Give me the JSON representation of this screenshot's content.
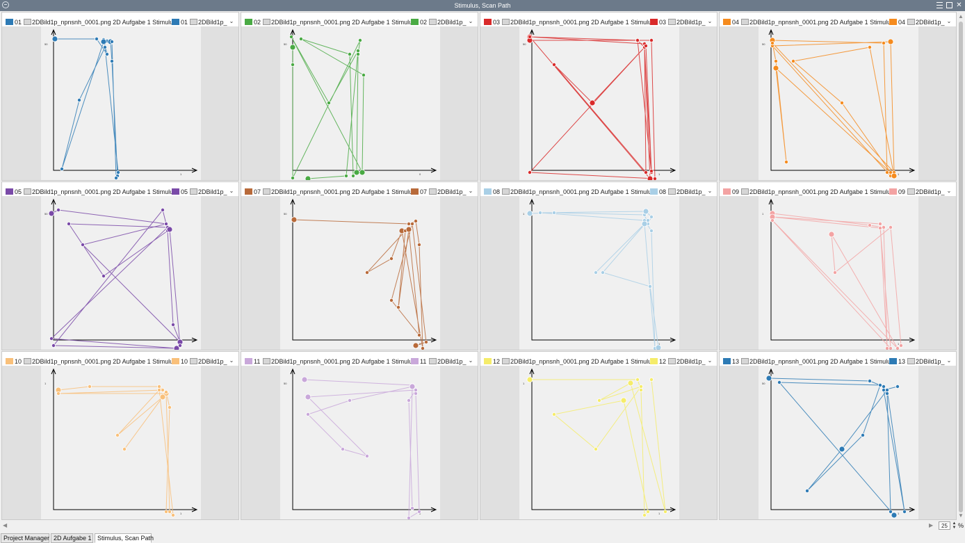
{
  "window": {
    "title": "Stimulus, Scan Path"
  },
  "colors": {
    "axis": "#000000",
    "plot_bg": "#f0f0f0",
    "gutter": "#e0e0e0",
    "titlebar": "#6c7a8a"
  },
  "icons": [
    "window-menu-icon",
    "menu-icon",
    "restore-icon",
    "close-icon",
    "chevron-down-icon",
    "arrow-up-icon",
    "arrow-down-icon",
    "arrow-left-icon",
    "arrow-right-icon"
  ],
  "stimulus_label": "2DBild1p_npnsnh_0001.png 2D Aufgabe 1 Stimulus",
  "short_label": "2DBild1p_",
  "panels": [
    {
      "id": "01",
      "color": "#2e7bb5",
      "axis_tick_y": "50",
      "axis_tick_x": "1",
      "path": [
        [
          10,
          8
        ],
        [
          70,
          8
        ],
        [
          85,
          30
        ],
        [
          80,
          9
        ],
        [
          85,
          11
        ],
        [
          90,
          12
        ],
        [
          92,
          40
        ],
        [
          100,
          205
        ],
        [
          98,
          208
        ],
        [
          92,
          12
        ],
        [
          80,
          12
        ],
        [
          20,
          195
        ],
        [
          45,
          96
        ],
        [
          82,
          20
        ],
        [
          101,
          200
        ]
      ]
    },
    {
      "id": "02",
      "color": "#4aaa44",
      "axis_tick_y": "50",
      "axis_tick_x": "0",
      "path": [
        [
          8,
          20
        ],
        [
          8,
          45
        ],
        [
          8,
          208
        ],
        [
          105,
          10
        ],
        [
          102,
          30
        ],
        [
          100,
          200
        ],
        [
          95,
          205
        ],
        [
          90,
          30
        ],
        [
          20,
          8
        ],
        [
          110,
          60
        ],
        [
          108,
          200
        ],
        [
          6,
          5
        ],
        [
          60,
          100
        ],
        [
          102,
          25
        ],
        [
          85,
          205
        ],
        [
          30,
          210
        ]
      ]
    },
    {
      "id": "03",
      "color": "#d92a2a",
      "axis_tick_y": "50",
      "axis_tick_x": "1",
      "path": [
        [
          5,
          5
        ],
        [
          160,
          10
        ],
        [
          170,
          20
        ],
        [
          180,
          200
        ],
        [
          160,
          10
        ],
        [
          5,
          10
        ],
        [
          180,
          10
        ],
        [
          185,
          210
        ],
        [
          5,
          200
        ],
        [
          170,
          20
        ],
        [
          178,
          210
        ],
        [
          5,
          5
        ],
        [
          170,
          15
        ],
        [
          172,
          200
        ],
        [
          40,
          45
        ],
        [
          95,
          100
        ],
        [
          172,
          18
        ],
        [
          180,
          198
        ]
      ]
    },
    {
      "id": "04",
      "color": "#f58b1e",
      "axis_tick_y": "50",
      "axis_tick_x": "1",
      "path": [
        [
          10,
          10
        ],
        [
          170,
          14
        ],
        [
          175,
          200
        ],
        [
          180,
          205
        ],
        [
          10,
          18
        ],
        [
          180,
          12
        ],
        [
          185,
          200
        ],
        [
          10,
          14
        ],
        [
          15,
          40
        ],
        [
          30,
          185
        ],
        [
          15,
          50
        ],
        [
          180,
          200
        ],
        [
          110,
          100
        ],
        [
          40,
          40
        ],
        [
          150,
          20
        ],
        [
          185,
          205
        ]
      ]
    },
    {
      "id": "05",
      "color": "#7a4aa8",
      "axis_tick_y": "50",
      "axis_tick_x": "1",
      "path": [
        [
          5,
          15
        ],
        [
          15,
          10
        ],
        [
          170,
          30
        ],
        [
          172,
          40
        ],
        [
          180,
          175
        ],
        [
          190,
          200
        ],
        [
          50,
          60
        ],
        [
          170,
          30
        ],
        [
          165,
          10
        ],
        [
          8,
          205
        ],
        [
          185,
          210
        ],
        [
          5,
          195
        ],
        [
          172,
          35
        ],
        [
          30,
          30
        ],
        [
          80,
          105
        ],
        [
          175,
          38
        ],
        [
          190,
          205
        ]
      ]
    },
    {
      "id": "07",
      "color": "#b86a3a",
      "axis_tick_y": "50",
      "axis_tick_x": "0",
      "path": [
        [
          10,
          24
        ],
        [
          175,
          30
        ],
        [
          185,
          26
        ],
        [
          190,
          60
        ],
        [
          195,
          210
        ],
        [
          165,
          40
        ],
        [
          150,
          80
        ],
        [
          115,
          100
        ],
        [
          170,
          40
        ],
        [
          160,
          150
        ],
        [
          175,
          38
        ],
        [
          190,
          190
        ],
        [
          150,
          140
        ],
        [
          180,
          30
        ],
        [
          200,
          200
        ],
        [
          185,
          205
        ]
      ]
    },
    {
      "id": "08",
      "color": "#a9cfe6",
      "axis_tick_y": "1",
      "axis_tick_x": "1",
      "path": [
        [
          5,
          15
        ],
        [
          40,
          14
        ],
        [
          170,
          17
        ],
        [
          175,
          30
        ],
        [
          180,
          20
        ],
        [
          172,
          12
        ],
        [
          20,
          14
        ],
        [
          170,
          25
        ],
        [
          180,
          40
        ],
        [
          185,
          210
        ],
        [
          170,
          30
        ],
        [
          100,
          100
        ],
        [
          175,
          25
        ],
        [
          110,
          100
        ],
        [
          178,
          120
        ],
        [
          190,
          208
        ]
      ]
    },
    {
      "id": "09",
      "color": "#f3a3a3",
      "axis_tick_y": "1",
      "axis_tick_x": "1",
      "path": [
        [
          10,
          15
        ],
        [
          150,
          32
        ],
        [
          170,
          35
        ],
        [
          175,
          210
        ],
        [
          165,
          30
        ],
        [
          10,
          20
        ],
        [
          165,
          36
        ],
        [
          180,
          210
        ],
        [
          10,
          25
        ],
        [
          190,
          210
        ],
        [
          95,
          45
        ],
        [
          100,
          100
        ],
        [
          180,
          35
        ],
        [
          195,
          205
        ]
      ]
    },
    {
      "id": "10",
      "color": "#f9c07a",
      "axis_tick_y": "1",
      "axis_tick_x": "1",
      "path": [
        [
          15,
          25
        ],
        [
          60,
          20
        ],
        [
          160,
          20
        ],
        [
          165,
          25
        ],
        [
          15,
          30
        ],
        [
          170,
          30
        ],
        [
          175,
          200
        ],
        [
          180,
          205
        ],
        [
          160,
          25
        ],
        [
          100,
          90
        ],
        [
          165,
          35
        ],
        [
          110,
          110
        ],
        [
          170,
          28
        ],
        [
          175,
          50
        ],
        [
          170,
          200
        ]
      ]
    },
    {
      "id": "11",
      "color": "#c9a8da",
      "axis_tick_y": "50",
      "axis_tick_x": "0",
      "path": [
        [
          25,
          10
        ],
        [
          180,
          18
        ],
        [
          185,
          30
        ],
        [
          190,
          200
        ],
        [
          175,
          210
        ],
        [
          180,
          20
        ],
        [
          90,
          40
        ],
        [
          30,
          60
        ],
        [
          80,
          110
        ],
        [
          115,
          120
        ],
        [
          30,
          35
        ],
        [
          185,
          25
        ],
        [
          175,
          40
        ],
        [
          180,
          195
        ]
      ]
    },
    {
      "id": "12",
      "color": "#f5ec6a",
      "axis_tick_y": "1",
      "axis_tick_x": "1",
      "path": [
        [
          5,
          10
        ],
        [
          160,
          10
        ],
        [
          165,
          25
        ],
        [
          170,
          205
        ],
        [
          175,
          200
        ],
        [
          140,
          40
        ],
        [
          40,
          60
        ],
        [
          100,
          110
        ],
        [
          165,
          20
        ],
        [
          105,
          40
        ],
        [
          150,
          15
        ],
        [
          200,
          200
        ],
        [
          180,
          10
        ]
      ]
    },
    {
      "id": "13",
      "color": "#2e7bb5",
      "axis_tick_y": "50",
      "axis_tick_x": "1",
      "path": [
        [
          5,
          8
        ],
        [
          150,
          12
        ],
        [
          170,
          20
        ],
        [
          175,
          30
        ],
        [
          180,
          200
        ],
        [
          185,
          205
        ],
        [
          20,
          14
        ],
        [
          165,
          18
        ],
        [
          140,
          90
        ],
        [
          60,
          170
        ],
        [
          110,
          110
        ],
        [
          175,
          25
        ],
        [
          200,
          200
        ],
        [
          170,
          25
        ],
        [
          190,
          20
        ]
      ]
    }
  ],
  "zoom": {
    "value": "25",
    "unit": "%"
  },
  "tabs": [
    {
      "label": "Project Manager",
      "active": false
    },
    {
      "label": "2D Aufgabe 1",
      "active": false
    },
    {
      "label": "Stimulus, Scan Path",
      "active": true
    }
  ]
}
